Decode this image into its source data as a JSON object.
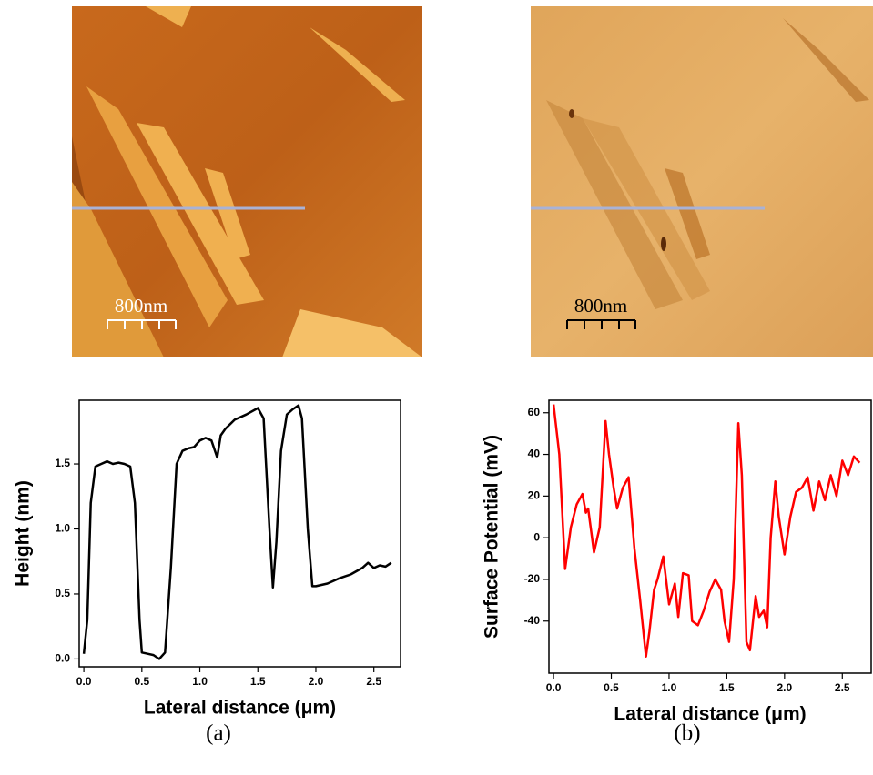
{
  "chart_data": [
    {
      "type": "line",
      "y_label": "Height (nm)",
      "x_label": "Lateral distance (μm)",
      "x": [
        0,
        0.03,
        0.06,
        0.1,
        0.15,
        0.2,
        0.25,
        0.3,
        0.35,
        0.4,
        0.44,
        0.48,
        0.5,
        0.55,
        0.6,
        0.65,
        0.7,
        0.75,
        0.8,
        0.85,
        0.9,
        0.95,
        1.0,
        1.05,
        1.1,
        1.15,
        1.18,
        1.22,
        1.3,
        1.4,
        1.5,
        1.55,
        1.6,
        1.63,
        1.66,
        1.7,
        1.75,
        1.8,
        1.85,
        1.88,
        1.93,
        1.97,
        2.0,
        2.1,
        2.2,
        2.3,
        2.4,
        2.45,
        2.5,
        2.55,
        2.6,
        2.65
      ],
      "series": [
        {
          "color": "#000000",
          "values": [
            0.04,
            0.3,
            1.2,
            1.48,
            1.5,
            1.52,
            1.5,
            1.51,
            1.5,
            1.48,
            1.2,
            0.3,
            0.05,
            0.04,
            0.03,
            0.0,
            0.05,
            0.7,
            1.5,
            1.6,
            1.62,
            1.63,
            1.68,
            1.7,
            1.68,
            1.55,
            1.72,
            1.77,
            1.84,
            1.88,
            1.93,
            1.85,
            1.0,
            0.55,
            0.9,
            1.6,
            1.88,
            1.92,
            1.95,
            1.85,
            1.0,
            0.56,
            0.56,
            0.58,
            0.62,
            0.65,
            0.7,
            0.74,
            0.7,
            0.72,
            0.71,
            0.74
          ]
        }
      ],
      "xlim": [
        -0.04,
        2.73
      ],
      "ylim": [
        -0.06,
        1.99
      ],
      "xticks": [
        {
          "value": 0,
          "label": "0.0"
        },
        0.5,
        {
          "value": 1,
          "label": "1.0"
        },
        1.5,
        {
          "value": 2,
          "label": "2.0"
        },
        2.5
      ],
      "yticks": [
        {
          "value": 0,
          "label": "0.0"
        },
        0.5,
        {
          "value": 1,
          "label": "1.0"
        },
        1.5
      ]
    },
    {
      "type": "line",
      "y_label": "Surface Potential (mV)",
      "x_label": "Lateral distance (μm)",
      "x": [
        0,
        0.05,
        0.1,
        0.15,
        0.2,
        0.25,
        0.28,
        0.3,
        0.35,
        0.4,
        0.45,
        0.48,
        0.52,
        0.55,
        0.6,
        0.65,
        0.7,
        0.75,
        0.8,
        0.83,
        0.87,
        0.9,
        0.95,
        1.0,
        1.05,
        1.08,
        1.12,
        1.17,
        1.2,
        1.25,
        1.3,
        1.35,
        1.4,
        1.45,
        1.48,
        1.52,
        1.56,
        1.6,
        1.63,
        1.67,
        1.7,
        1.75,
        1.78,
        1.82,
        1.85,
        1.88,
        1.92,
        1.95,
        2.0,
        2.05,
        2.1,
        2.15,
        2.2,
        2.25,
        2.3,
        2.35,
        2.4,
        2.45,
        2.5,
        2.55,
        2.6,
        2.65
      ],
      "series": [
        {
          "color": "#ff0000",
          "values": [
            64,
            40,
            -15,
            5,
            16,
            21,
            12,
            14,
            -7,
            5,
            56,
            40,
            24,
            14,
            24,
            29,
            -5,
            -30,
            -57,
            -45,
            -25,
            -20,
            -9,
            -32,
            -22,
            -38,
            -17,
            -18,
            -40,
            -42,
            -35,
            -26,
            -20,
            -25,
            -40,
            -50,
            -20,
            55,
            30,
            -50,
            -54,
            -28,
            -38,
            -35,
            -43,
            0,
            27,
            10,
            -8,
            10,
            22,
            24,
            29,
            13,
            27,
            18,
            30,
            20,
            37,
            30,
            39,
            36
          ]
        }
      ],
      "xlim": [
        -0.04,
        2.75
      ],
      "ylim": [
        -65,
        66
      ],
      "xticks": [
        {
          "value": 0,
          "label": "0.0"
        },
        0.5,
        {
          "value": 1,
          "label": "1.0"
        },
        1.5,
        {
          "value": 2,
          "label": "2.0"
        },
        2.5
      ],
      "yticks": [
        60,
        40,
        20,
        0,
        -20,
        -40
      ]
    }
  ],
  "images": [
    {
      "scale_label": "800nm"
    },
    {
      "scale_label": "800nm"
    }
  ],
  "panel_labels": [
    "(a)",
    "(b)"
  ]
}
